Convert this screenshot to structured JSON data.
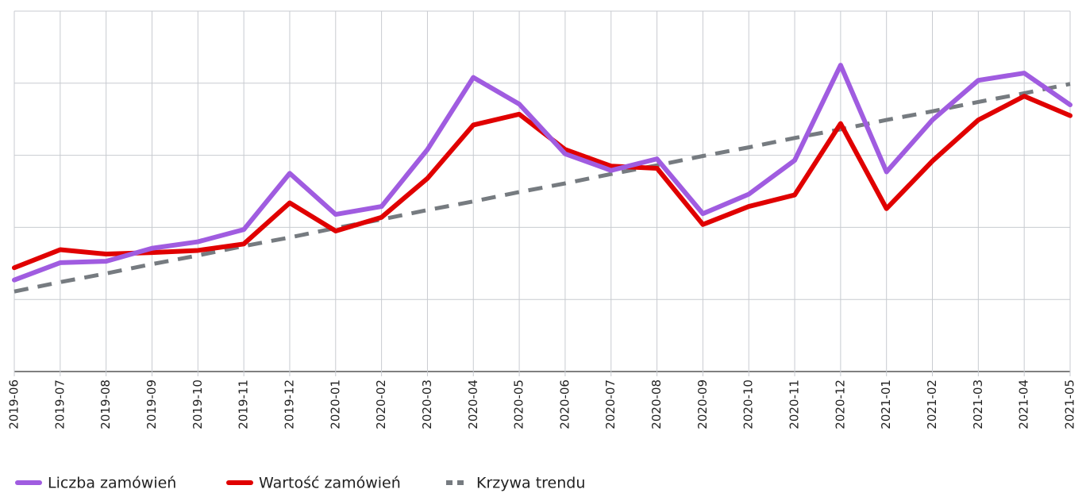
{
  "chart_data": {
    "type": "line",
    "categories": [
      "2019-06",
      "2019-07",
      "2019-08",
      "2019-09",
      "2019-10",
      "2019-11",
      "2019-12",
      "2020-01",
      "2020-02",
      "2020-03",
      "2020-04",
      "2020-05",
      "2020-06",
      "2020-07",
      "2020-08",
      "2020-09",
      "2020-10",
      "2020-11",
      "2020-12",
      "2021-01",
      "2021-02",
      "2021-03",
      "2021-04",
      "2021-05"
    ],
    "series": [
      {
        "name": "Liczba zamówień",
        "color": "#a05ce0",
        "dashed": false,
        "values": [
          1.27,
          1.51,
          1.53,
          1.71,
          1.8,
          1.97,
          2.75,
          2.18,
          2.29,
          3.08,
          4.08,
          3.71,
          3.02,
          2.79,
          2.95,
          2.19,
          2.46,
          2.93,
          4.25,
          2.77,
          3.49,
          4.04,
          4.14,
          3.7
        ]
      },
      {
        "name": "Wartość zamówień",
        "color": "#e00000",
        "dashed": false,
        "values": [
          1.44,
          1.69,
          1.63,
          1.65,
          1.68,
          1.77,
          2.34,
          1.95,
          2.14,
          2.68,
          3.42,
          3.57,
          3.08,
          2.85,
          2.82,
          2.04,
          2.29,
          2.45,
          3.44,
          2.26,
          2.92,
          3.49,
          3.82,
          3.55
        ]
      },
      {
        "name": "Krzywa trendu",
        "color": "#767b80",
        "dashed": true,
        "values": [
          1.11,
          1.24,
          1.36,
          1.49,
          1.61,
          1.74,
          1.86,
          1.99,
          2.11,
          2.24,
          2.36,
          2.49,
          2.61,
          2.74,
          2.86,
          2.99,
          3.11,
          3.24,
          3.36,
          3.49,
          3.61,
          3.74,
          3.86,
          3.99
        ]
      }
    ],
    "ylim": [
      0,
      5
    ],
    "grid": true
  }
}
